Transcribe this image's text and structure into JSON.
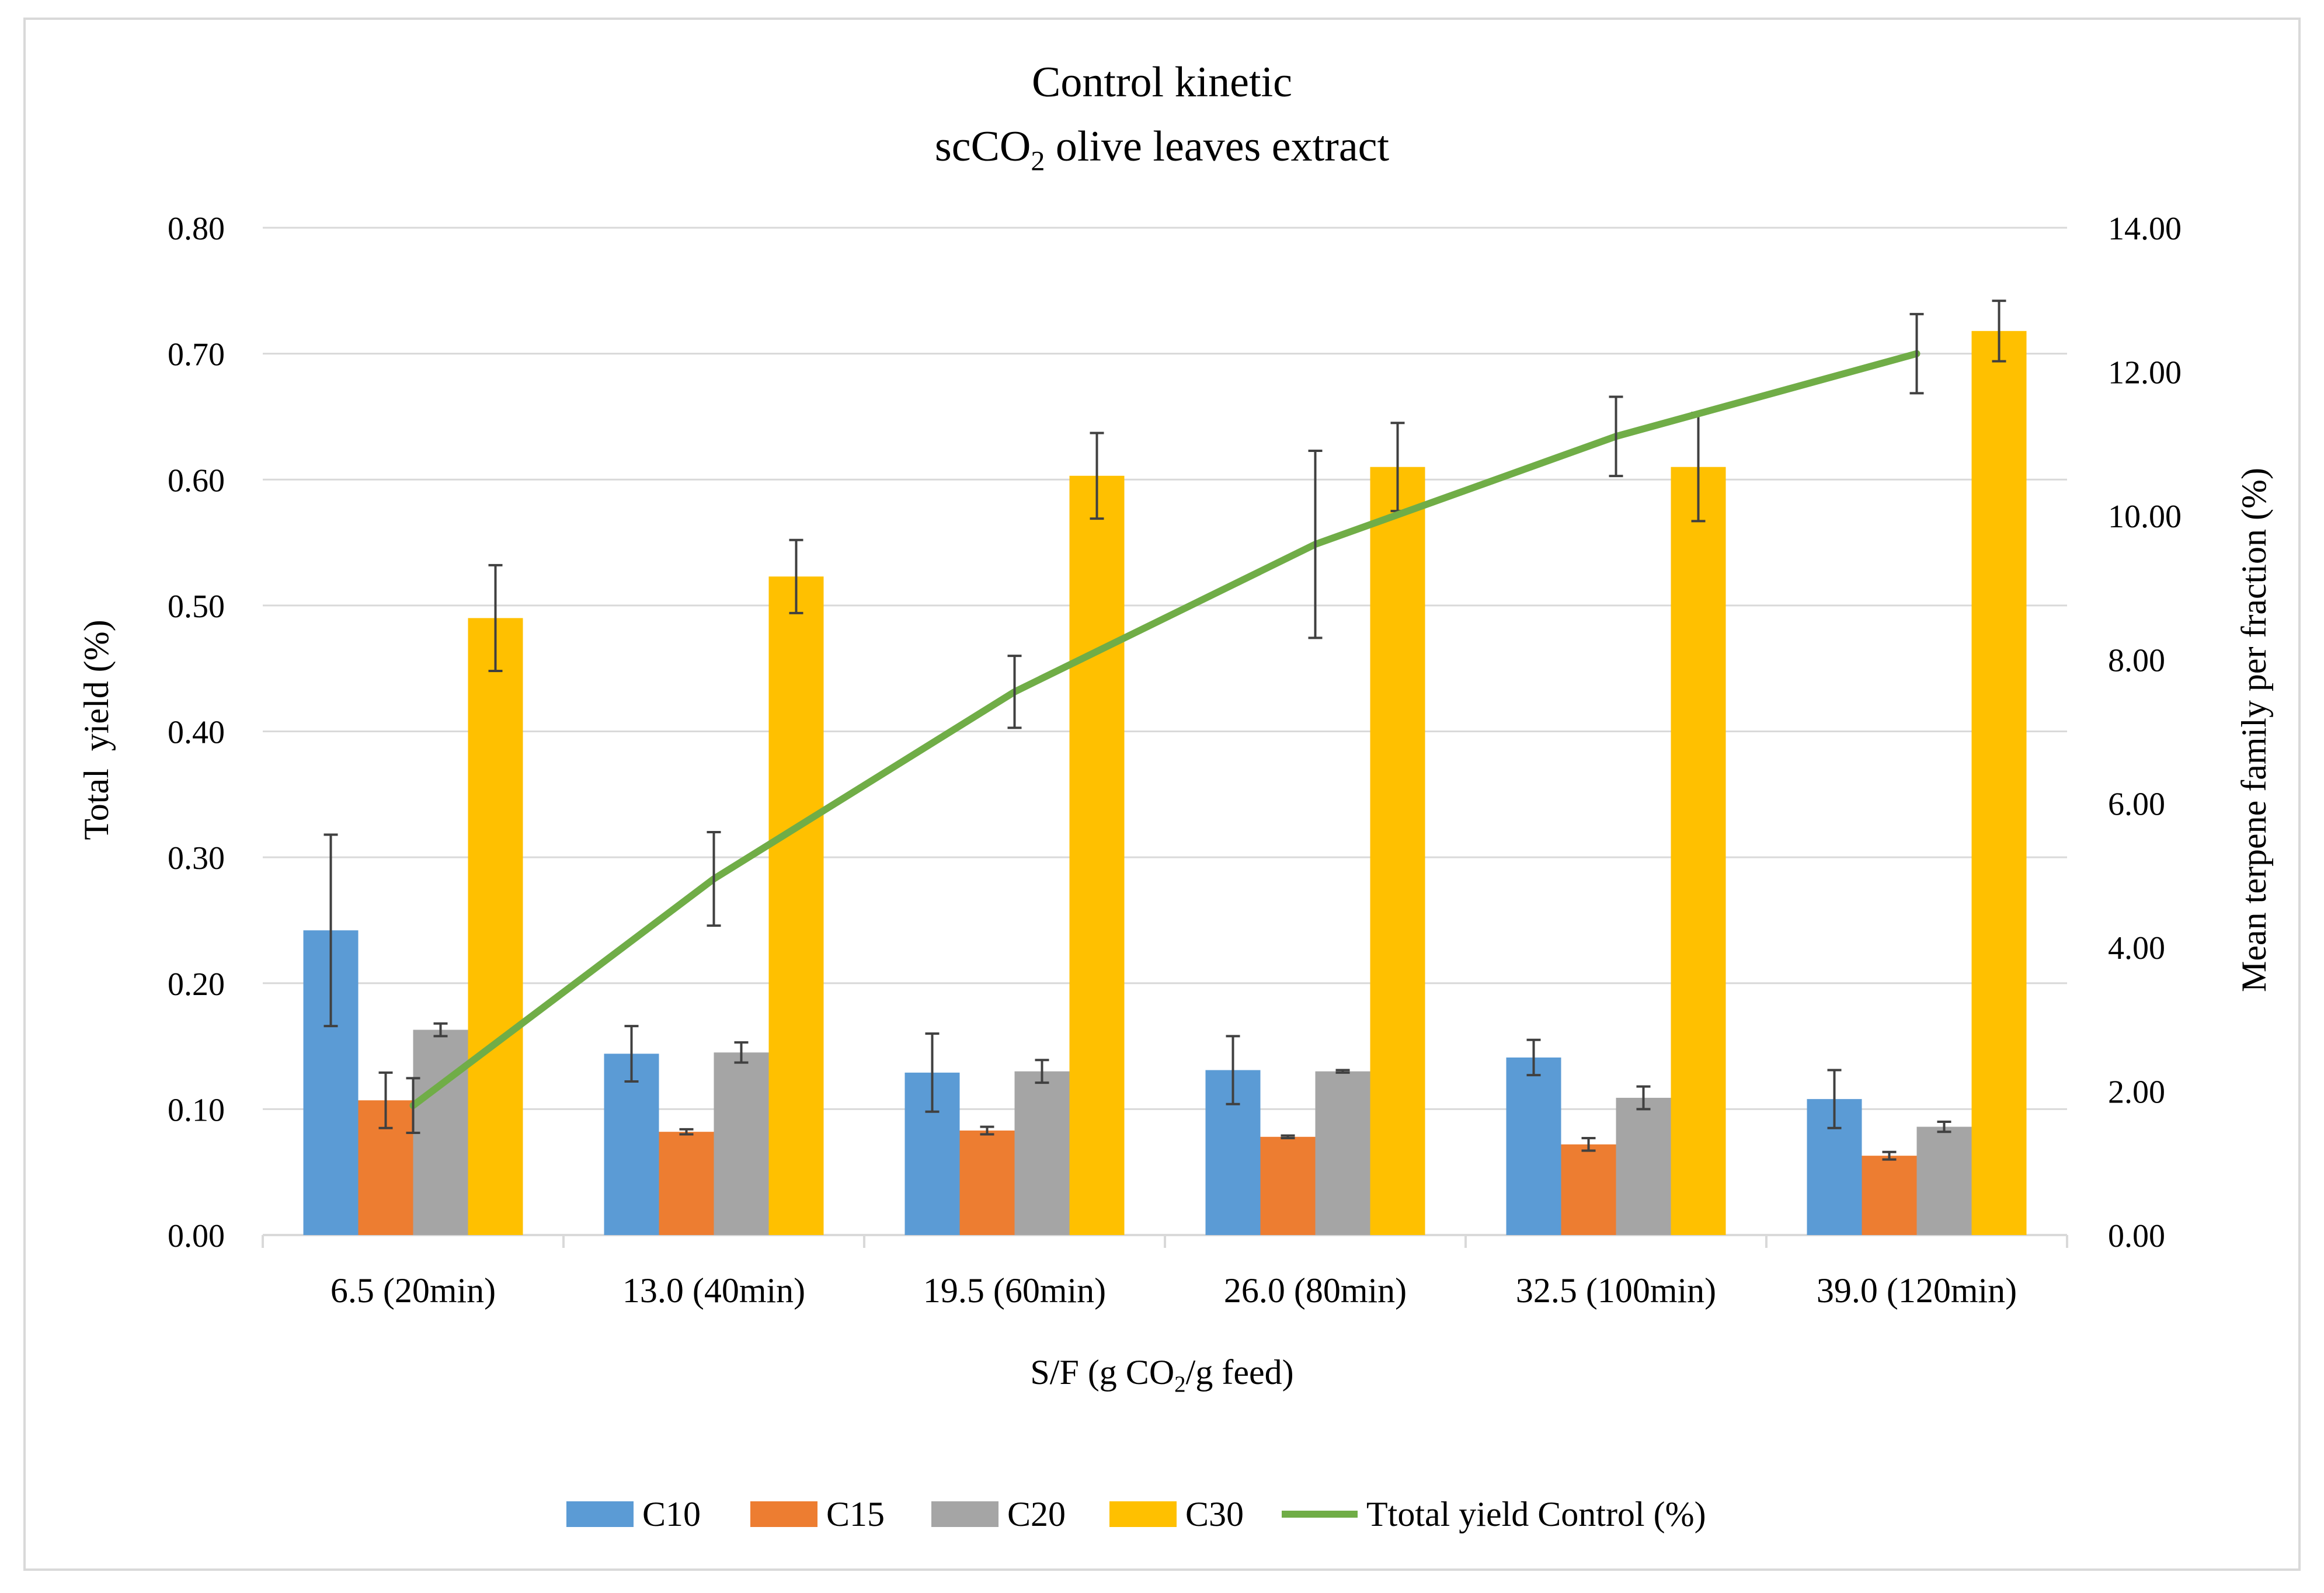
{
  "chart_data": {
    "type": "bar",
    "title_line1": "Control kinetic",
    "title_line2": {
      "before": "scCO",
      "sub": "2",
      "after": " olive leaves extract"
    },
    "xlabel": {
      "before": "S/F (g CO",
      "sub": "2",
      "after": "/g feed)"
    },
    "ylabel": "Total  yield (%)",
    "y2label": "Mean terpene family per fraction (%)",
    "ylim": [
      0,
      0.8
    ],
    "y2lim": [
      0,
      14
    ],
    "yticks": [
      "0.00",
      "0.10",
      "0.20",
      "0.30",
      "0.40",
      "0.50",
      "0.60",
      "0.70",
      "0.80"
    ],
    "y2ticks": [
      "0.00",
      "2.00",
      "4.00",
      "6.00",
      "8.00",
      "10.00",
      "12.00",
      "14.00"
    ],
    "categories": [
      "6.5 (20min)",
      "13.0 (40min)",
      "19.5 (60min)",
      "26.0 (80min)",
      "32.5 (100min)",
      "39.0 (120min)"
    ],
    "series": [
      {
        "name": "C10",
        "color": "#5b9bd5",
        "values": [
          0.242,
          0.144,
          0.129,
          0.131,
          0.141,
          0.108
        ],
        "errors": [
          0.076,
          0.022,
          0.031,
          0.027,
          0.014,
          0.023
        ]
      },
      {
        "name": "C15",
        "color": "#ed7d31",
        "values": [
          0.107,
          0.082,
          0.083,
          0.078,
          0.072,
          0.063
        ],
        "errors": [
          0.022,
          0.002,
          0.003,
          0.001,
          0.005,
          0.003
        ]
      },
      {
        "name": "C20",
        "color": "#a5a5a5",
        "values": [
          0.163,
          0.145,
          0.13,
          0.13,
          0.109,
          0.086
        ],
        "errors": [
          0.005,
          0.008,
          0.009,
          0.001,
          0.009,
          0.004
        ]
      },
      {
        "name": "C30",
        "color": "#ffc000",
        "values": [
          0.49,
          0.523,
          0.603,
          0.61,
          0.61,
          0.718
        ],
        "errors": [
          0.042,
          0.029,
          0.034,
          0.035,
          0.043,
          0.024
        ]
      }
    ],
    "line_series": {
      "name": "Ttotal yield Control (%)",
      "color": "#70ad47",
      "axis": "right",
      "values": [
        1.8,
        4.95,
        7.55,
        9.6,
        11.1,
        12.25
      ],
      "errors": [
        0.38,
        0.65,
        0.5,
        1.3,
        0.55,
        0.55
      ]
    },
    "legend_position": "bottom",
    "grid": true
  }
}
